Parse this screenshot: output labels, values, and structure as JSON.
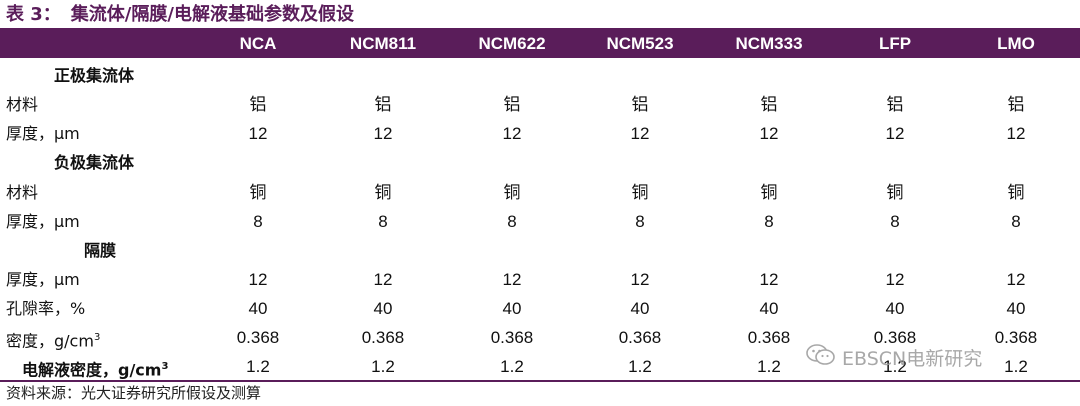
{
  "title": {
    "label": "表 3：",
    "text": "集流体/隔膜/电解液基础参数及假设"
  },
  "columns": [
    "NCA",
    "NCM811",
    "NCM622",
    "NCM523",
    "NCM333",
    "LFP",
    "LMO"
  ],
  "sections": {
    "cathode": "正极集流体",
    "anode": "负极集流体",
    "separator": "隔膜"
  },
  "rows": {
    "cathode_material": {
      "label": "材料",
      "values": [
        "铝",
        "铝",
        "铝",
        "铝",
        "铝",
        "铝",
        "铝"
      ]
    },
    "cathode_thickness": {
      "label": "厚度，μm",
      "values": [
        "12",
        "12",
        "12",
        "12",
        "12",
        "12",
        "12"
      ]
    },
    "anode_material": {
      "label": "材料",
      "values": [
        "铜",
        "铜",
        "铜",
        "铜",
        "铜",
        "铜",
        "铜"
      ]
    },
    "anode_thickness": {
      "label": "厚度，μm",
      "values": [
        "8",
        "8",
        "8",
        "8",
        "8",
        "8",
        "8"
      ]
    },
    "sep_thickness": {
      "label": "厚度，μm",
      "values": [
        "12",
        "12",
        "12",
        "12",
        "12",
        "12",
        "12"
      ]
    },
    "sep_porosity": {
      "label": "孔隙率，%",
      "values": [
        "40",
        "40",
        "40",
        "40",
        "40",
        "40",
        "40"
      ]
    },
    "sep_density": {
      "label": "密度，g/cm",
      "sup": "3",
      "values": [
        "0.368",
        "0.368",
        "0.368",
        "0.368",
        "0.368",
        "0.368",
        "0.368"
      ]
    },
    "electrolyte_density": {
      "label": "电解液密度，g/cm",
      "sup": "3",
      "values": [
        "1.2",
        "1.2",
        "1.2",
        "1.2",
        "1.2",
        "1.2",
        "1.2"
      ]
    }
  },
  "source": "资料来源：光大证券研究所假设及测算",
  "watermark": "EBSCN电新研究",
  "colors": {
    "accent": "#5a1d5a",
    "header_text": "#ffffff"
  }
}
